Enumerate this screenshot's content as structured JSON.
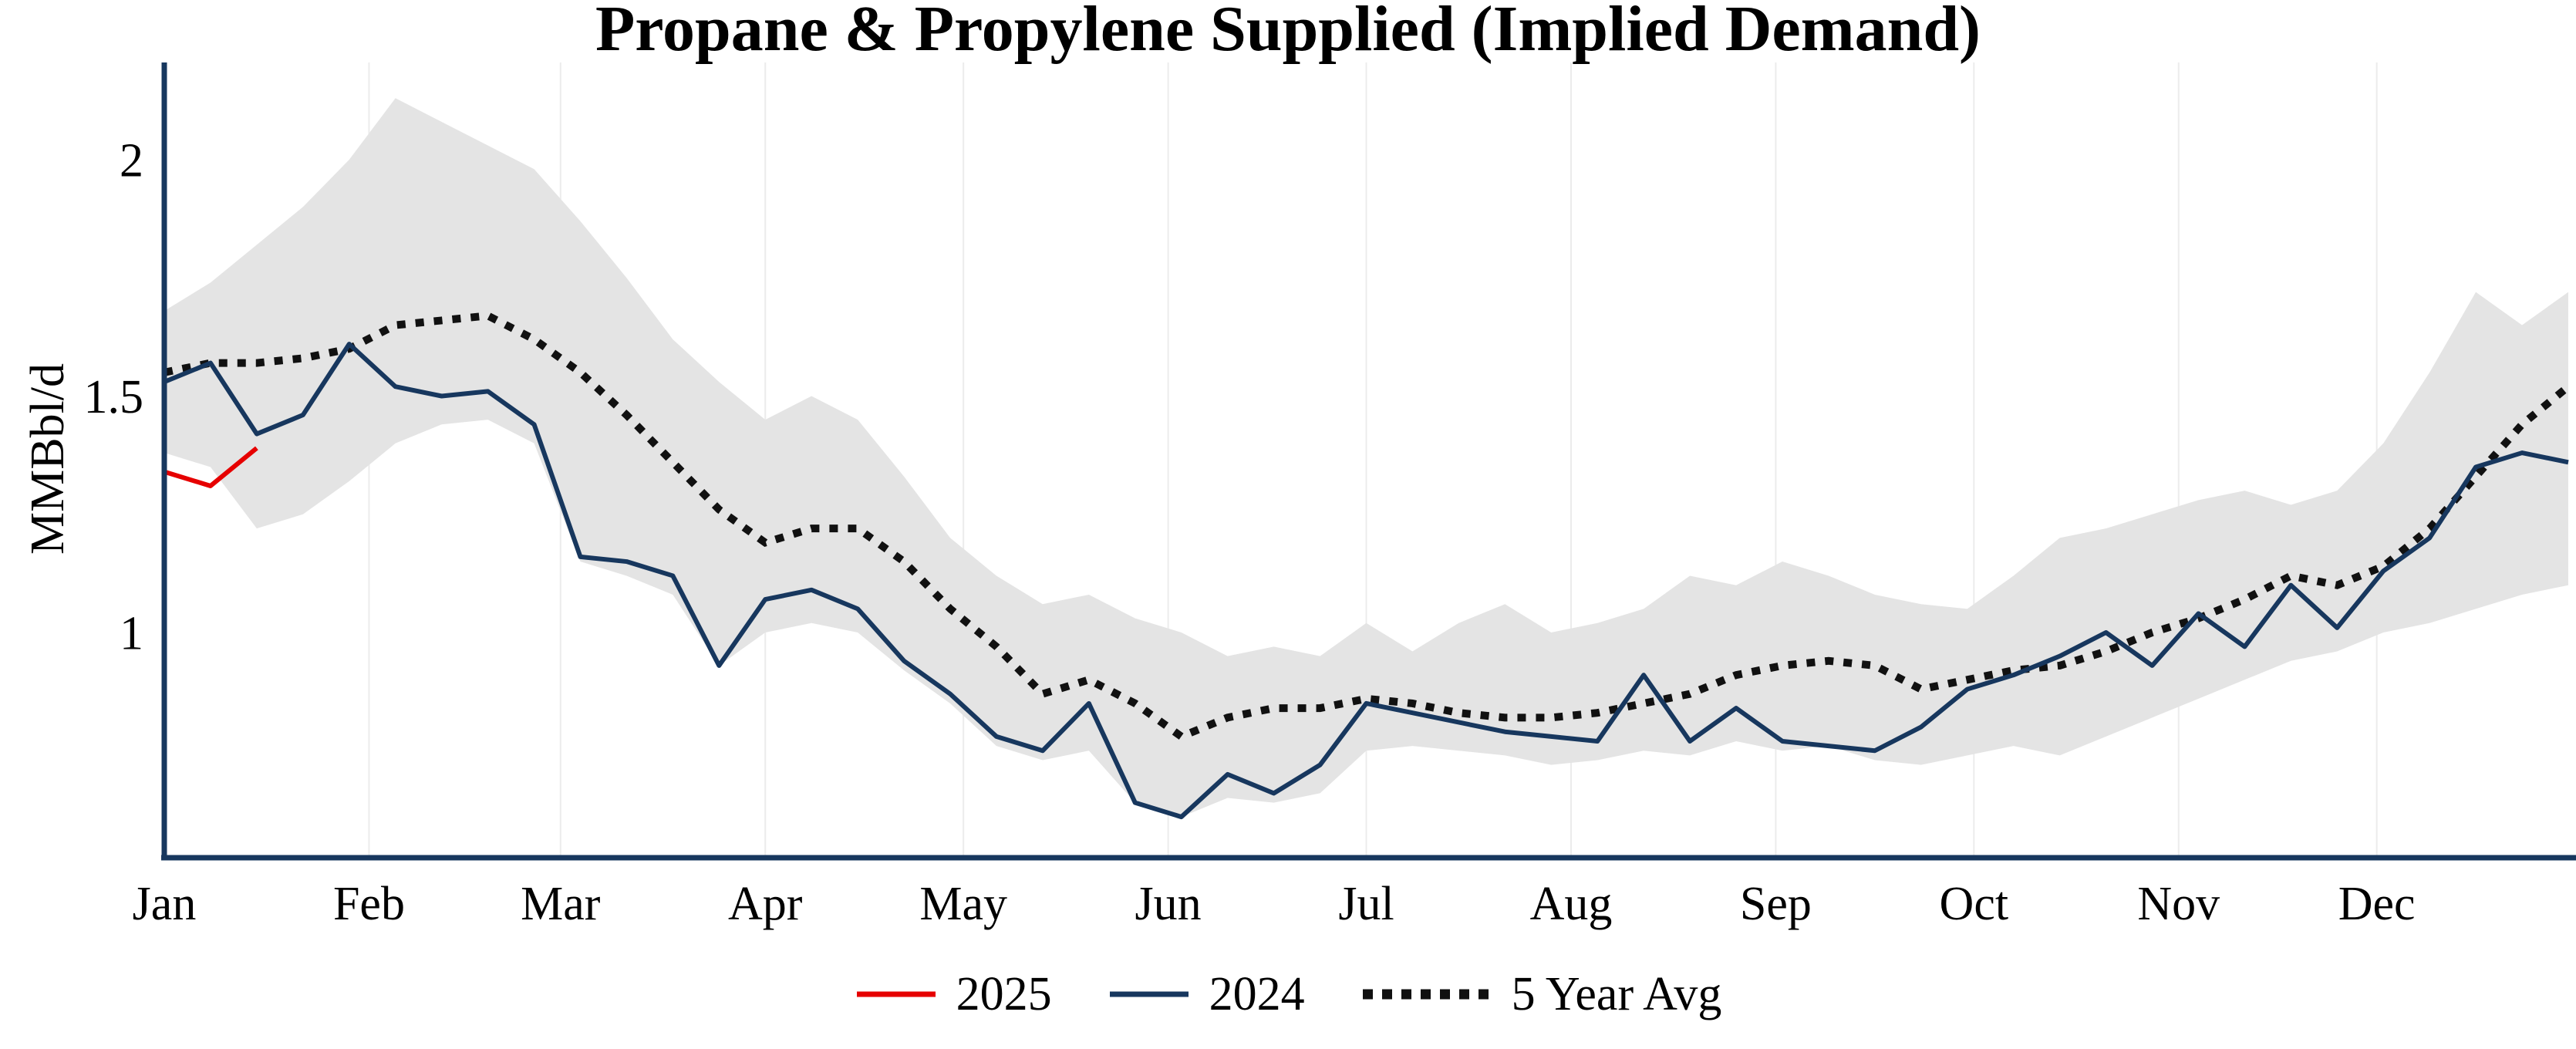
{
  "chart_data": {
    "type": "line",
    "title": "Propane & Propylene Supplied (Implied Demand)",
    "ylabel": "MMBbl/d",
    "x_tick_labels": [
      "Jan",
      "Feb",
      "Mar",
      "Apr",
      "May",
      "Jun",
      "Jul",
      "Aug",
      "Sep",
      "Oct",
      "Nov",
      "Dec"
    ],
    "y_ticks": [
      {
        "value": 2,
        "label": "2"
      },
      {
        "value": 1.5,
        "label": "1.5"
      },
      {
        "value": 1,
        "label": "1"
      }
    ],
    "ylim": [
      0.52,
      2.21
    ],
    "x_unit": "week_of_year",
    "x_weeks": 53,
    "grid": "vertical-month-lines",
    "legend_position": "bottom-center",
    "colors": {
      "axis": "#17375e",
      "band": "#e4e4e4",
      "grid": "#ececec"
    },
    "series": [
      {
        "name": "2025",
        "color": "#e60000",
        "style": "solid",
        "start_week": 1,
        "values": [
          1.34,
          1.31,
          1.39
        ]
      },
      {
        "name": "2024",
        "color": "#17375e",
        "style": "solid",
        "start_week": 1,
        "values": [
          1.53,
          1.57,
          1.42,
          1.46,
          1.61,
          1.52,
          1.5,
          1.51,
          1.44,
          1.16,
          1.15,
          1.12,
          0.93,
          1.07,
          1.09,
          1.05,
          0.94,
          0.87,
          0.78,
          0.75,
          0.85,
          0.64,
          0.61,
          0.7,
          0.66,
          0.72,
          0.85,
          0.83,
          0.81,
          0.79,
          0.78,
          0.77,
          0.91,
          0.77,
          0.84,
          0.77,
          0.76,
          0.75,
          0.8,
          0.88,
          0.91,
          0.95,
          1.0,
          0.93,
          1.04,
          0.97,
          1.1,
          1.01,
          1.13,
          1.2,
          1.35,
          1.38,
          1.36
        ]
      },
      {
        "name": "5 Year Avg",
        "color": "#111111",
        "style": "dotted",
        "start_week": 1,
        "values": [
          1.55,
          1.57,
          1.57,
          1.58,
          1.6,
          1.65,
          1.66,
          1.67,
          1.62,
          1.55,
          1.46,
          1.36,
          1.26,
          1.19,
          1.22,
          1.22,
          1.15,
          1.05,
          0.97,
          0.87,
          0.9,
          0.85,
          0.78,
          0.82,
          0.84,
          0.84,
          0.86,
          0.85,
          0.83,
          0.82,
          0.82,
          0.83,
          0.85,
          0.87,
          0.91,
          0.93,
          0.94,
          0.93,
          0.88,
          0.9,
          0.92,
          0.93,
          0.96,
          1.0,
          1.03,
          1.07,
          1.12,
          1.1,
          1.14,
          1.22,
          1.33,
          1.44,
          1.52
        ]
      }
    ],
    "band": {
      "name": "5 Year Range",
      "color": "#e4e4e4",
      "upper": [
        1.68,
        1.74,
        1.82,
        1.9,
        2.0,
        2.13,
        2.08,
        2.03,
        1.98,
        1.87,
        1.75,
        1.62,
        1.53,
        1.45,
        1.5,
        1.45,
        1.33,
        1.2,
        1.12,
        1.06,
        1.08,
        1.03,
        1.0,
        0.95,
        0.97,
        0.95,
        1.02,
        0.96,
        1.02,
        1.06,
        1.0,
        1.02,
        1.05,
        1.12,
        1.1,
        1.15,
        1.12,
        1.08,
        1.06,
        1.05,
        1.12,
        1.2,
        1.22,
        1.25,
        1.28,
        1.3,
        1.27,
        1.3,
        1.4,
        1.55,
        1.72,
        1.65,
        1.72
      ],
      "lower": [
        1.38,
        1.35,
        1.22,
        1.25,
        1.32,
        1.4,
        1.44,
        1.45,
        1.4,
        1.15,
        1.12,
        1.08,
        0.93,
        1.0,
        1.02,
        1.0,
        0.92,
        0.85,
        0.76,
        0.73,
        0.75,
        0.64,
        0.61,
        0.65,
        0.64,
        0.66,
        0.75,
        0.76,
        0.75,
        0.74,
        0.72,
        0.73,
        0.75,
        0.74,
        0.77,
        0.75,
        0.76,
        0.73,
        0.72,
        0.74,
        0.76,
        0.74,
        0.78,
        0.82,
        0.86,
        0.9,
        0.94,
        0.96,
        1.0,
        1.02,
        1.05,
        1.08,
        1.1
      ]
    }
  },
  "legend": {
    "items": [
      {
        "label": "2025",
        "color": "#e60000",
        "style": "solid"
      },
      {
        "label": "2024",
        "color": "#17375e",
        "style": "solid"
      },
      {
        "label": "5 Year Avg",
        "color": "#111111",
        "style": "dotted"
      }
    ]
  }
}
